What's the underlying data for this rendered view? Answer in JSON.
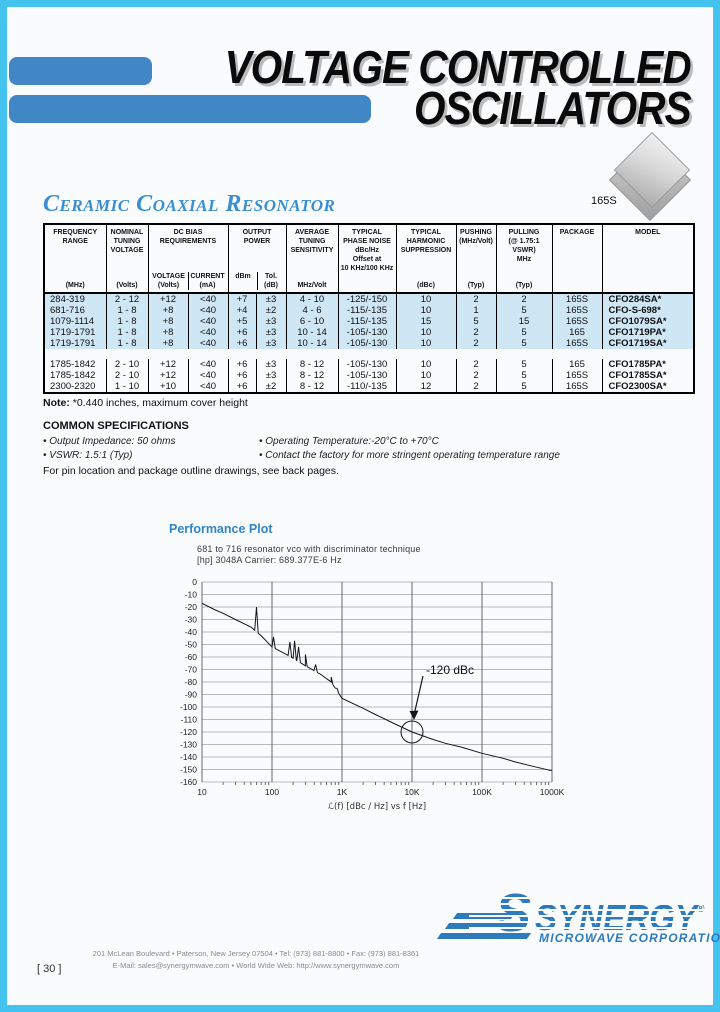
{
  "header": {
    "title_line1": "VOLTAGE CONTROLLED",
    "title_line2": "OSCILLATORS"
  },
  "section": {
    "heading": "Ceramic Coaxial Resonator",
    "package_label": "165S"
  },
  "table": {
    "headers": {
      "freq_title": "FREQUENCY\nRANGE",
      "freq_unit": "(MHz)",
      "nominal_title": "NOMINAL\nTUNING\nVOLTAGE",
      "nominal_unit": "(Volts)",
      "dcbias_title": "DC BIAS\nREQUIREMENTS",
      "dcbias_sub1": "VOLTAGE\n(Volts)",
      "dcbias_sub2": "CURRENT\n(mA)",
      "power_title": "OUTPUT\nPOWER",
      "power_sub1": "dBm",
      "power_sub2": "Tol.\n(dB)",
      "sensitivity_title": "AVERAGE\nTUNING\nSENSITIVITY",
      "sensitivity_unit": "MHz/Volt",
      "phase_title": "TYPICAL\nPHASE NOISE\ndBc/Hz\nOffset at\n10 KHz/100 KHz",
      "harmonic_title": "TYPICAL\nHARMONIC\nSUPPRESSION",
      "harmonic_unit": "(dBc)",
      "pushing_title": "PUSHING\n(MHz/Volt)",
      "pushing_unit": "(Typ)",
      "pulling_title": "PULLING\n(@ 1.75:1 VSWR)\nMHz",
      "pulling_unit": "(Typ)",
      "package_title": "PACKAGE",
      "model_title": "MODEL"
    },
    "group_sizes": [
      5,
      3
    ],
    "rows": [
      [
        "284-319",
        "2 - 12",
        "+12",
        "<40",
        "+7",
        "±3",
        "4 - 10",
        "-125/-150",
        "10",
        "2",
        "2",
        "165S",
        "CFO284SA*"
      ],
      [
        "681-716",
        "1 - 8",
        "+8",
        "<40",
        "+4",
        "±2",
        "4 - 6",
        "-115/-135",
        "10",
        "1",
        "5",
        "165S",
        "CFO-S-698*"
      ],
      [
        "1079-1114",
        "1 - 8",
        "+8",
        "<40",
        "+5",
        "±3",
        "6 - 10",
        "-115/-135",
        "15",
        "5",
        "15",
        "165S",
        "CFO1079SA*"
      ],
      [
        "1719-1791",
        "1 - 8",
        "+8",
        "<40",
        "+6",
        "±3",
        "10 - 14",
        "-105/-130",
        "10",
        "2",
        "5",
        "165",
        "CFO1719PA*"
      ],
      [
        "1719-1791",
        "1 - 8",
        "+8",
        "<40",
        "+6",
        "±3",
        "10 - 14",
        "-105/-130",
        "10",
        "2",
        "5",
        "165S",
        "CFO1719SA*"
      ],
      [
        "1785-1842",
        "2 - 10",
        "+12",
        "<40",
        "+6",
        "±3",
        "8 - 12",
        "-105/-130",
        "10",
        "2",
        "5",
        "165",
        "CFO1785PA*"
      ],
      [
        "1785-1842",
        "2 - 10",
        "+12",
        "<40",
        "+6",
        "±3",
        "8 - 12",
        "-105/-130",
        "10",
        "2",
        "5",
        "165S",
        "CFO1785SA*"
      ],
      [
        "2300-2320",
        "1 - 10",
        "+10",
        "<40",
        "+6",
        "±2",
        "8 - 12",
        "-110/-135",
        "12",
        "2",
        "5",
        "165S",
        "CFO2300SA*"
      ]
    ]
  },
  "note": {
    "label": "Note:",
    "text": " *0.440 inches,  maximum cover height"
  },
  "common_specs": {
    "heading": "COMMON SPECIFICATIONS",
    "left": [
      "Output Impedance: 50 ohms",
      "VSWR: 1.5:1 (Typ)"
    ],
    "right": [
      "Operating Temperature:-20°C to +70°C",
      "Contact the factory for more stringent operating temperature range"
    ]
  },
  "pin_note": "For pin location and package outline drawings, see back pages.",
  "performance": {
    "heading": "Performance Plot",
    "title_line1": "681 to 716 resonator vco with discriminator technique",
    "title_line2": "[hp] 3048A Carrier: 689.377E-6 Hz"
  },
  "chart_data": {
    "type": "line",
    "title": "681 to 716 resonator vco with discriminator technique",
    "subtitle": "[hp] 3048A Carrier: 689.377E-6 Hz",
    "xlabel": "ℒ(f)  [dBc / Hz]  vs  f  [Hz]",
    "x_scale": "log",
    "xlim": [
      10,
      1000000
    ],
    "ylim": [
      -160,
      0
    ],
    "y_tick_step": 10,
    "x_ticks": [
      "10",
      "100",
      "1K",
      "10K",
      "100K",
      "1000K"
    ],
    "grid": true,
    "baseline": [
      [
        10,
        -17
      ],
      [
        15,
        -22
      ],
      [
        20,
        -25
      ],
      [
        30,
        -30
      ],
      [
        50,
        -36
      ],
      [
        70,
        -43
      ],
      [
        100,
        -52
      ],
      [
        150,
        -57
      ],
      [
        200,
        -61
      ],
      [
        300,
        -67
      ],
      [
        500,
        -74
      ],
      [
        700,
        -80
      ],
      [
        1000,
        -93
      ],
      [
        2000,
        -101
      ],
      [
        3000,
        -106
      ],
      [
        5000,
        -112
      ],
      [
        10000,
        -120
      ],
      [
        20000,
        -126
      ],
      [
        30000,
        -129
      ],
      [
        50000,
        -132
      ],
      [
        100000,
        -137
      ],
      [
        200000,
        -141
      ],
      [
        300000,
        -144
      ],
      [
        500000,
        -147
      ],
      [
        1000000,
        -151
      ]
    ],
    "spurs": [
      [
        60,
        -20
      ],
      [
        105,
        -44
      ],
      [
        180,
        -48
      ],
      [
        210,
        -47
      ],
      [
        240,
        -52
      ],
      [
        300,
        -58
      ],
      [
        420,
        -66
      ],
      [
        700,
        -76
      ],
      [
        850,
        -85
      ]
    ],
    "annotation": {
      "label": "-120 dBc",
      "x": 10000,
      "y": -120
    }
  },
  "footer": {
    "address_line1": "201 McLean Boulevard • Paterson, New Jersey 07504 • Tel: (973) 881-8800 • Fax: (973) 881-8361",
    "address_line2": "E-Mail: sales@synergymwave.com • World Wide Web: http://www.synergymwave.com",
    "page_number": "[ 30 ]"
  },
  "logo": {
    "name": "SYNERGY",
    "registered": "®",
    "subtitle": "MICROWAVE CORPORATION"
  }
}
